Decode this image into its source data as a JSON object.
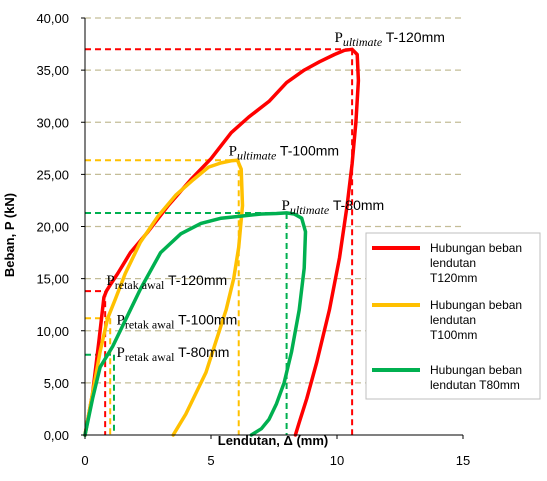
{
  "chart_data": {
    "type": "line",
    "xlabel": "Lendutan, Δ (mm)",
    "ylabel": "Beban, P (kN)",
    "xlim": [
      0,
      15
    ],
    "ylim": [
      0,
      40
    ],
    "xticks": [
      "0",
      "5",
      "10",
      "15"
    ],
    "yticks": [
      "0,00",
      "5,00",
      "10,00",
      "15,00",
      "20,00",
      "25,00",
      "30,00",
      "35,00",
      "40,00"
    ],
    "grid": "horizontal dashed",
    "legend_position": "right",
    "series": [
      {
        "name": "Hubungan beban lendutan T120mm",
        "legend_lines": [
          "Hubungan beban",
          "lendutan",
          "T120mm"
        ],
        "color": "#ff0000",
        "x": [
          0.0,
          0.3,
          0.55,
          0.75,
          0.85,
          1.0,
          1.3,
          1.8,
          2.5,
          3.3,
          4.2,
          5.0,
          5.8,
          6.5,
          7.3,
          8.0,
          8.7,
          9.3,
          9.9,
          10.3,
          10.6,
          10.8,
          10.85,
          10.75,
          10.6,
          10.4,
          10.1,
          9.7,
          9.2,
          8.8,
          8.5,
          8.35
        ],
        "y": [
          0.0,
          4.0,
          9.0,
          13.2,
          13.8,
          14.4,
          15.5,
          17.5,
          19.5,
          22.0,
          24.5,
          26.5,
          29.0,
          30.5,
          32.0,
          33.8,
          35.0,
          35.8,
          36.5,
          36.9,
          37.0,
          36.5,
          34.0,
          30.0,
          26.0,
          22.0,
          17.0,
          12.0,
          7.0,
          3.5,
          1.2,
          0.0
        ]
      },
      {
        "name": "Hubungan beban lendutan T100mm",
        "legend_lines": [
          "Hubungan beban",
          "lendutan",
          "T100mm"
        ],
        "color": "#ffc000",
        "x": [
          0.0,
          0.3,
          0.6,
          0.9,
          1.2,
          1.6,
          2.2,
          2.9,
          3.6,
          4.3,
          4.9,
          5.4,
          5.8,
          6.05,
          6.2,
          6.25,
          6.1,
          5.9,
          5.6,
          5.2,
          4.8,
          4.4,
          4.0,
          3.7,
          3.5
        ],
        "y": [
          0.0,
          4.0,
          8.0,
          11.2,
          13.0,
          15.5,
          18.5,
          21.0,
          23.0,
          24.5,
          25.7,
          26.1,
          26.3,
          26.35,
          25.5,
          22.0,
          18.0,
          15.0,
          12.0,
          9.0,
          6.0,
          4.0,
          2.0,
          0.8,
          0.0
        ]
      },
      {
        "name": "Hubungan beban lendutan T80mm",
        "legend_lines": [
          "Hubungan beban",
          "lendutan T80mm"
        ],
        "color": "#00b050",
        "x": [
          0.0,
          0.3,
          0.6,
          0.9,
          1.1,
          1.5,
          2.2,
          3.0,
          3.8,
          4.6,
          5.4,
          6.2,
          7.0,
          7.6,
          8.0,
          8.3,
          8.6,
          8.75,
          8.7,
          8.5,
          8.2,
          7.9,
          7.6,
          7.3,
          7.0,
          6.6
        ],
        "y": [
          0.0,
          3.5,
          6.5,
          7.7,
          8.5,
          10.5,
          14.0,
          17.5,
          19.3,
          20.3,
          20.8,
          21.0,
          21.2,
          21.25,
          21.3,
          21.2,
          20.8,
          19.5,
          16.0,
          12.0,
          8.0,
          5.0,
          3.0,
          1.5,
          0.6,
          0.0
        ]
      }
    ],
    "reference_lines": [
      {
        "color": "#ff0000",
        "x": 10.6,
        "y": 37.0
      },
      {
        "color": "#ffc000",
        "x": 6.1,
        "y": 26.35
      },
      {
        "color": "#00b050",
        "x": 8.0,
        "y": 21.3
      },
      {
        "color": "#ff0000",
        "x": 0.8,
        "y": 13.8
      },
      {
        "color": "#ffc000",
        "x": 1.0,
        "y": 11.2
      },
      {
        "color": "#00b050",
        "x": 1.15,
        "y": 7.7
      }
    ],
    "annotations": [
      {
        "id": "ult120",
        "p": "P",
        "sub": "ultimate",
        "sub_style": "italic",
        "rest": " T-120mm",
        "x": 9.9,
        "y": 37.7
      },
      {
        "id": "ult100",
        "p": "P",
        "sub": "ultimate",
        "sub_style": "italic",
        "rest": " T-100mm",
        "x": 5.7,
        "y": 26.8
      },
      {
        "id": "ult80",
        "p": "P",
        "sub": "ultimate",
        "sub_style": "italic",
        "rest": " T-80mm",
        "x": 7.8,
        "y": 21.6
      },
      {
        "id": "ret120",
        "p": "P",
        "sub": "retak awal",
        "sub_style": "normal",
        "rest": " T-120mm",
        "x": 0.85,
        "y": 14.4
      },
      {
        "id": "ret100",
        "p": "P",
        "sub": "retak awal",
        "sub_style": "normal",
        "rest": " T-100mm",
        "x": 1.25,
        "y": 10.6
      },
      {
        "id": "ret80",
        "p": "P",
        "sub": "retak awal",
        "sub_style": "normal",
        "rest": " T-80mm",
        "x": 1.25,
        "y": 7.5
      }
    ]
  }
}
